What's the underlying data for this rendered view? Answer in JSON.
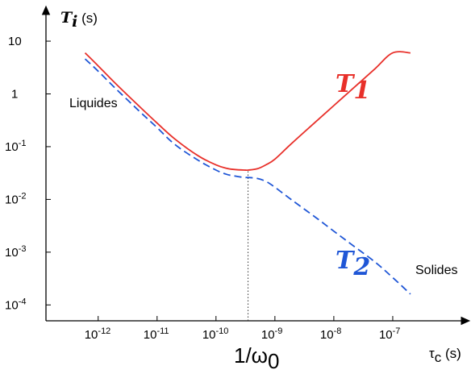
{
  "chart_data": {
    "type": "line",
    "x_scale": "log",
    "y_scale": "log",
    "x_ticks": [
      {
        "value": 1e-12,
        "base": "10",
        "exp": "-12"
      },
      {
        "value": 1e-11,
        "base": "10",
        "exp": "-11"
      },
      {
        "value": 1e-10,
        "base": "10",
        "exp": "-10"
      },
      {
        "value": 1e-09,
        "base": "10",
        "exp": "-9"
      },
      {
        "value": 1e-08,
        "base": "10",
        "exp": "-8"
      },
      {
        "value": 1e-07,
        "base": "10",
        "exp": "-7"
      }
    ],
    "y_ticks": [
      {
        "value": 10,
        "base": "10",
        "exp": ""
      },
      {
        "value": 1,
        "base": "1",
        "exp": ""
      },
      {
        "value": 0.1,
        "base": "10",
        "exp": "-1"
      },
      {
        "value": 0.01,
        "base": "10",
        "exp": "-2"
      },
      {
        "value": 0.001,
        "base": "10",
        "exp": "-3"
      },
      {
        "value": 0.0001,
        "base": "10",
        "exp": "-4"
      }
    ],
    "xlim": [
      1.3e-13,
      1e-06
    ],
    "ylim": [
      5e-05,
      25
    ],
    "x_axis_label": {
      "symbol": "τ",
      "sub": "c",
      "unit": " (s)"
    },
    "y_axis_label": {
      "symbol": "T",
      "sub": "i",
      "unit": " (s)"
    },
    "series": [
      {
        "name": "T1",
        "label_main": "T",
        "label_sub": "1",
        "color": "#e8302a",
        "dash": "solid",
        "x": [
          6e-13,
          1e-12,
          2e-12,
          5e-12,
          1e-11,
          2e-11,
          5e-11,
          1e-10,
          1.5e-10,
          2e-10,
          3e-10,
          3.5e-10,
          5e-10,
          7e-10,
          1e-09,
          2e-09,
          5e-09,
          1e-08,
          2e-08,
          5e-08,
          1e-07,
          2e-07
        ],
        "y": [
          6,
          3.4,
          1.55,
          0.58,
          0.28,
          0.14,
          0.067,
          0.045,
          0.039,
          0.037,
          0.036,
          0.036,
          0.038,
          0.045,
          0.058,
          0.12,
          0.3,
          0.6,
          1.2,
          3,
          6,
          6
        ]
      },
      {
        "name": "T2",
        "label_main": "T",
        "label_sub": "2",
        "color": "#1f56d6",
        "dash": "dashed",
        "x": [
          6e-13,
          1e-12,
          2e-12,
          5e-12,
          1e-11,
          2e-11,
          5e-11,
          1e-10,
          1.5e-10,
          2e-10,
          3e-10,
          3.5e-10,
          5e-10,
          7e-10,
          1e-09,
          2e-09,
          5e-09,
          1e-08,
          2e-08,
          5e-08,
          1e-07,
          2e-07
        ],
        "y": [
          4.6,
          2.7,
          1.25,
          0.47,
          0.23,
          0.11,
          0.055,
          0.036,
          0.03,
          0.028,
          0.026,
          0.026,
          0.025,
          0.022,
          0.017,
          0.0095,
          0.0045,
          0.0025,
          0.0014,
          0.00065,
          0.00033,
          0.00016
        ]
      }
    ],
    "annotations": {
      "liquides": "Liquides",
      "solides": "Solides",
      "omega_prefix": "1/ω",
      "omega_sub": "0",
      "omega_x": 3.5e-10
    },
    "grid": false,
    "legend": "none"
  }
}
